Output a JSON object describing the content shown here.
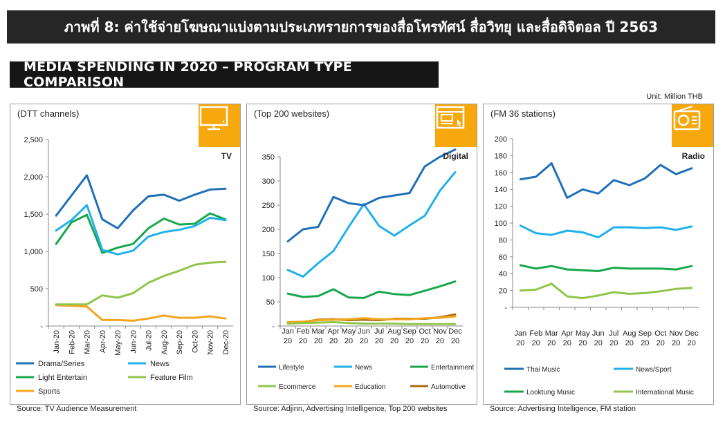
{
  "header": {
    "thai_title": "ภาพที่ 8: ค่าใช้จ่ายโฆษณาแบ่งตามประเภทรายการของสื่อโทรทัศน์ สื่อวิทยุ และสื่อดิจิตอล ปี 2563",
    "subtitle": "MEDIA SPENDING IN 2020 – PROGRAM TYPE COMPARISON",
    "unit": "Unit: Million THB"
  },
  "colors": {
    "banner": "#262626",
    "icon_bg": "#f7a80e",
    "dark_blue": "#1f6fb8",
    "light_blue": "#20b0ec",
    "green": "#17a74a",
    "light_green": "#8fc54a",
    "orange": "#f5a51c",
    "brown": "#a86a10"
  },
  "panels": [
    {
      "subtitle": "(DTT  channels)",
      "type_label": "TV",
      "icon": "tv-icon",
      "source": "Source: TV Audience Measurement"
    },
    {
      "subtitle": "(Top 200 websites)",
      "type_label": "Digital",
      "icon": "browser-window-icon",
      "source": "Source: Adjinn, Advertising Intelligence, Top 200 websites"
    },
    {
      "subtitle": "(FM 36 stations)",
      "type_label": "Radio",
      "icon": "radio-icon",
      "source": "Source: Advertising Intelligence, FM station"
    }
  ],
  "chart_data": [
    {
      "type": "line",
      "title": "",
      "xlabel": "",
      "ylabel": "",
      "x": [
        "Jan-20",
        "Feb-20",
        "Mar-20",
        "Apr-20",
        "May-20",
        "Jun-20",
        "Jul-20",
        "Aug-20",
        "Sep-20",
        "Oct-20",
        "Nov-20",
        "Dec-20"
      ],
      "ylim": [
        0,
        2500
      ],
      "yticks": [
        "-",
        "500",
        "1,000",
        "1,500",
        "2,000",
        "2,500"
      ],
      "ytick_values": [
        0,
        500,
        1000,
        1500,
        2000,
        2500
      ],
      "legend_placement": "bottom",
      "series": [
        {
          "name": "Drama/Series",
          "color": "#1f6fb8",
          "values": [
            1480,
            1750,
            2020,
            1430,
            1310,
            1550,
            1740,
            1760,
            1680,
            1760,
            1830,
            1840
          ]
        },
        {
          "name": "News",
          "color": "#20b0ec",
          "values": [
            1280,
            1420,
            1620,
            1020,
            960,
            1010,
            1200,
            1260,
            1290,
            1340,
            1450,
            1420
          ]
        },
        {
          "name": "Light Entertain",
          "color": "#17a74a",
          "values": [
            1100,
            1390,
            1490,
            980,
            1050,
            1100,
            1310,
            1440,
            1360,
            1370,
            1510,
            1430
          ]
        },
        {
          "name": "Feature Film",
          "color": "#8fc54a",
          "values": [
            290,
            290,
            290,
            410,
            380,
            440,
            580,
            670,
            740,
            820,
            850,
            860
          ]
        },
        {
          "name": "Sports",
          "color": "#f5a51c",
          "values": [
            280,
            270,
            260,
            80,
            80,
            70,
            100,
            140,
            110,
            110,
            130,
            100
          ]
        }
      ]
    },
    {
      "type": "line",
      "title": "",
      "xlabel": "",
      "ylabel": "",
      "x": [
        "Jan 20",
        "Feb 20",
        "Mar 20",
        "Apr 20",
        "May 20",
        "Jun 20",
        "Jul 20",
        "Aug 20",
        "Sep 20",
        "Oct 20",
        "Nov 20",
        "Dec 20"
      ],
      "ylim": [
        0,
        350
      ],
      "yticks": [
        "-",
        "50",
        "100",
        "150",
        "200",
        "250",
        "300",
        "350"
      ],
      "ytick_values": [
        0,
        50,
        100,
        150,
        200,
        250,
        300,
        350
      ],
      "legend_placement": "bottom",
      "series": [
        {
          "name": "Lifestyle",
          "color": "#1f6fb8",
          "values": [
            175,
            200,
            205,
            267,
            254,
            250,
            265,
            270,
            275,
            330,
            350,
            365
          ]
        },
        {
          "name": "News",
          "color": "#20b0ec",
          "values": [
            116,
            102,
            130,
            155,
            205,
            252,
            207,
            187,
            208,
            228,
            280,
            318
          ]
        },
        {
          "name": "Entertainment",
          "color": "#17a74a",
          "values": [
            67,
            60,
            62,
            76,
            59,
            58,
            71,
            66,
            64,
            73,
            82,
            92
          ]
        },
        {
          "name": "Ecommerce",
          "color": "#8fc54a",
          "values": [
            5,
            6,
            7,
            8,
            6,
            5,
            5,
            5,
            4,
            4,
            4,
            4
          ]
        },
        {
          "name": "Education",
          "color": "#f5a51c",
          "values": [
            8,
            9,
            12,
            13,
            14,
            16,
            14,
            14,
            14,
            16,
            17,
            20
          ]
        },
        {
          "name": "Automotive",
          "color": "#a86a10",
          "values": [
            7,
            8,
            13,
            14,
            12,
            13,
            12,
            15,
            15,
            15,
            18,
            24
          ]
        }
      ]
    },
    {
      "type": "line",
      "title": "",
      "xlabel": "",
      "ylabel": "",
      "x": [
        "Jan 20",
        "Feb 20",
        "Mar 20",
        "Apr 20",
        "May 20",
        "Jun 20",
        "Jul 20",
        "Aug 20",
        "Sep 20",
        "Oct 20",
        "Nov 20",
        "Dec 20"
      ],
      "ylim": [
        0,
        200
      ],
      "yticks": [
        "-",
        "20",
        "40",
        "60",
        "80",
        "100",
        "120",
        "140",
        "160",
        "180",
        "200"
      ],
      "ytick_values": [
        0,
        20,
        40,
        60,
        80,
        100,
        120,
        140,
        160,
        180,
        200
      ],
      "legend_placement": "bottom",
      "series": [
        {
          "name": "Thai Music",
          "color": "#1f6fb8",
          "values": [
            152,
            155,
            171,
            130,
            140,
            135,
            151,
            145,
            153,
            169,
            158,
            165
          ]
        },
        {
          "name": "News/Sport",
          "color": "#20b0ec",
          "values": [
            97,
            88,
            86,
            91,
            89,
            83,
            95,
            95,
            94,
            95,
            92,
            96
          ]
        },
        {
          "name": "Looktung Music",
          "color": "#17a74a",
          "values": [
            50,
            46,
            49,
            45,
            44,
            43,
            47,
            46,
            46,
            46,
            45,
            49
          ]
        },
        {
          "name": "International Music",
          "color": "#8fc54a",
          "values": [
            20,
            21,
            28,
            13,
            11,
            14,
            18,
            16,
            17,
            19,
            22,
            23
          ]
        }
      ]
    }
  ]
}
